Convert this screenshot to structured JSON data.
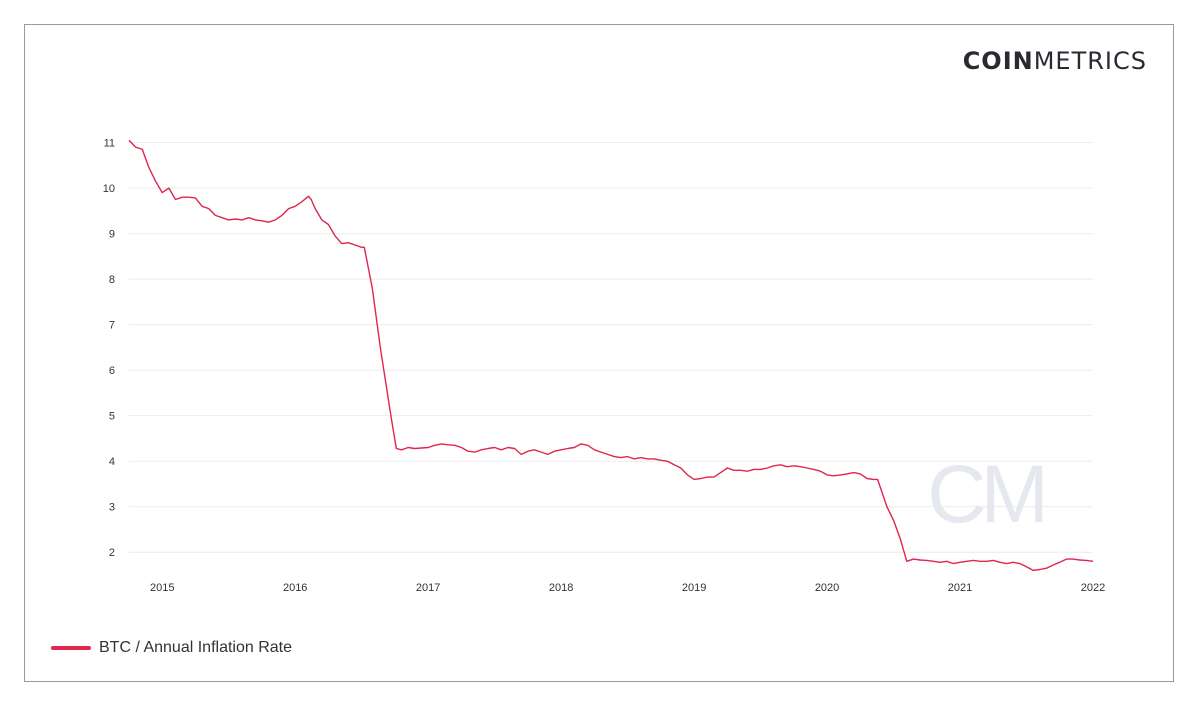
{
  "logo": {
    "part1": "COIN",
    "part2": "METRICS"
  },
  "watermark": "CM",
  "colors": {
    "line": "#e0254f",
    "grid": "#ebebeb",
    "text": "#333333"
  },
  "legend": {
    "label": "BTC / Annual Inflation Rate"
  },
  "chart_data": {
    "type": "line",
    "title": "",
    "xlabel": "",
    "ylabel": "",
    "x_ticks": [
      "2015",
      "2016",
      "2017",
      "2018",
      "2019",
      "2020",
      "2021",
      "2022"
    ],
    "y_ticks": [
      2,
      3,
      4,
      5,
      6,
      7,
      8,
      9,
      10,
      11
    ],
    "xlim": [
      2014.75,
      2022.0
    ],
    "ylim": [
      1.5,
      11.1
    ],
    "grid": true,
    "legend_position": "bottom-left",
    "series": [
      {
        "name": "BTC / Annual Inflation Rate",
        "x": [
          2014.75,
          2014.8,
          2014.85,
          2014.9,
          2014.95,
          2015.0,
          2015.05,
          2015.1,
          2015.15,
          2015.2,
          2015.25,
          2015.3,
          2015.35,
          2015.4,
          2015.45,
          2015.5,
          2015.55,
          2015.6,
          2015.65,
          2015.7,
          2015.75,
          2015.8,
          2015.85,
          2015.9,
          2015.95,
          2016.0,
          2016.05,
          2016.1,
          2016.12,
          2016.15,
          2016.2,
          2016.25,
          2016.3,
          2016.35,
          2016.4,
          2016.45,
          2016.5,
          2016.52,
          2016.58,
          2016.64,
          2016.72,
          2016.76,
          2016.8,
          2016.85,
          2016.9,
          2017.0,
          2017.05,
          2017.1,
          2017.15,
          2017.2,
          2017.25,
          2017.3,
          2017.35,
          2017.4,
          2017.45,
          2017.5,
          2017.55,
          2017.6,
          2017.65,
          2017.7,
          2017.75,
          2017.8,
          2017.85,
          2017.9,
          2017.95,
          2018.0,
          2018.05,
          2018.1,
          2018.15,
          2018.2,
          2018.25,
          2018.3,
          2018.35,
          2018.4,
          2018.45,
          2018.5,
          2018.55,
          2018.6,
          2018.65,
          2018.7,
          2018.75,
          2018.8,
          2018.85,
          2018.9,
          2018.95,
          2019.0,
          2019.05,
          2019.1,
          2019.15,
          2019.2,
          2019.25,
          2019.3,
          2019.35,
          2019.4,
          2019.45,
          2019.5,
          2019.55,
          2019.6,
          2019.65,
          2019.7,
          2019.75,
          2019.8,
          2019.85,
          2019.9,
          2019.95,
          2020.0,
          2020.05,
          2020.1,
          2020.15,
          2020.2,
          2020.25,
          2020.3,
          2020.35,
          2020.38,
          2020.45,
          2020.5,
          2020.55,
          2020.6,
          2020.65,
          2020.7,
          2020.75,
          2020.8,
          2020.85,
          2020.9,
          2020.95,
          2021.0,
          2021.05,
          2021.1,
          2021.15,
          2021.2,
          2021.25,
          2021.3,
          2021.35,
          2021.4,
          2021.45,
          2021.5,
          2021.55,
          2021.6,
          2021.65,
          2021.7,
          2021.75,
          2021.8,
          2021.85,
          2021.9,
          2021.95,
          2022.0
        ],
        "y": [
          11.05,
          10.9,
          10.85,
          10.45,
          10.15,
          9.9,
          10.0,
          9.75,
          9.8,
          9.8,
          9.78,
          9.6,
          9.55,
          9.4,
          9.35,
          9.3,
          9.32,
          9.3,
          9.35,
          9.3,
          9.28,
          9.25,
          9.3,
          9.4,
          9.55,
          9.6,
          9.7,
          9.82,
          9.75,
          9.55,
          9.3,
          9.2,
          8.95,
          8.78,
          8.8,
          8.75,
          8.7,
          8.7,
          7.8,
          6.5,
          5.0,
          4.28,
          4.25,
          4.3,
          4.28,
          4.3,
          4.35,
          4.38,
          4.36,
          4.35,
          4.3,
          4.22,
          4.2,
          4.25,
          4.28,
          4.3,
          4.25,
          4.3,
          4.28,
          4.15,
          4.22,
          4.25,
          4.2,
          4.15,
          4.22,
          4.25,
          4.28,
          4.3,
          4.38,
          4.35,
          4.25,
          4.2,
          4.15,
          4.1,
          4.08,
          4.1,
          4.05,
          4.08,
          4.05,
          4.05,
          4.02,
          4.0,
          3.92,
          3.85,
          3.7,
          3.6,
          3.62,
          3.65,
          3.65,
          3.75,
          3.85,
          3.8,
          3.8,
          3.78,
          3.82,
          3.82,
          3.85,
          3.9,
          3.92,
          3.88,
          3.9,
          3.88,
          3.85,
          3.82,
          3.78,
          3.7,
          3.68,
          3.7,
          3.72,
          3.75,
          3.72,
          3.62,
          3.6,
          3.6,
          3.0,
          2.7,
          2.3,
          1.8,
          1.85,
          1.83,
          1.82,
          1.8,
          1.78,
          1.8,
          1.75,
          1.78,
          1.8,
          1.82,
          1.8,
          1.8,
          1.82,
          1.78,
          1.75,
          1.78,
          1.75,
          1.68,
          1.6,
          1.62,
          1.65,
          1.72,
          1.78,
          1.85,
          1.85,
          1.83,
          1.82,
          1.8
        ]
      }
    ]
  }
}
